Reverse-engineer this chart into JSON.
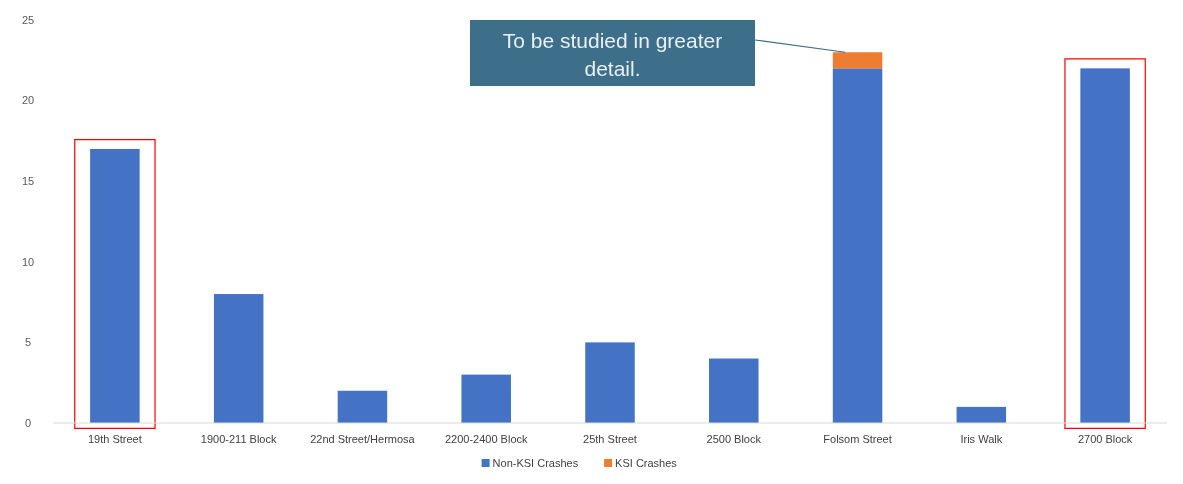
{
  "chart_data": {
    "type": "bar",
    "stacked": true,
    "categories": [
      "19th Street",
      "1900-211 Block",
      "22nd Street/Hermosa",
      "2200-2400 Block",
      "25th Street",
      "2500 Block",
      "Folsom Street",
      "Iris Walk",
      "2700 Block"
    ],
    "series": [
      {
        "name": "Non-KSI Crashes",
        "color": "#4472c4",
        "values": [
          17,
          8,
          2,
          3,
          5,
          4,
          22,
          1,
          22
        ]
      },
      {
        "name": "KSI Crashes",
        "color": "#ed7d31",
        "values": [
          0,
          0,
          0,
          0,
          0,
          0,
          1,
          0,
          0
        ]
      }
    ],
    "ylim": [
      0,
      25
    ],
    "yticks": [
      0,
      5,
      10,
      15,
      20,
      25
    ],
    "grid": false,
    "legend": "bottom",
    "annotations": [
      "To be studied in greater detail."
    ]
  }
}
